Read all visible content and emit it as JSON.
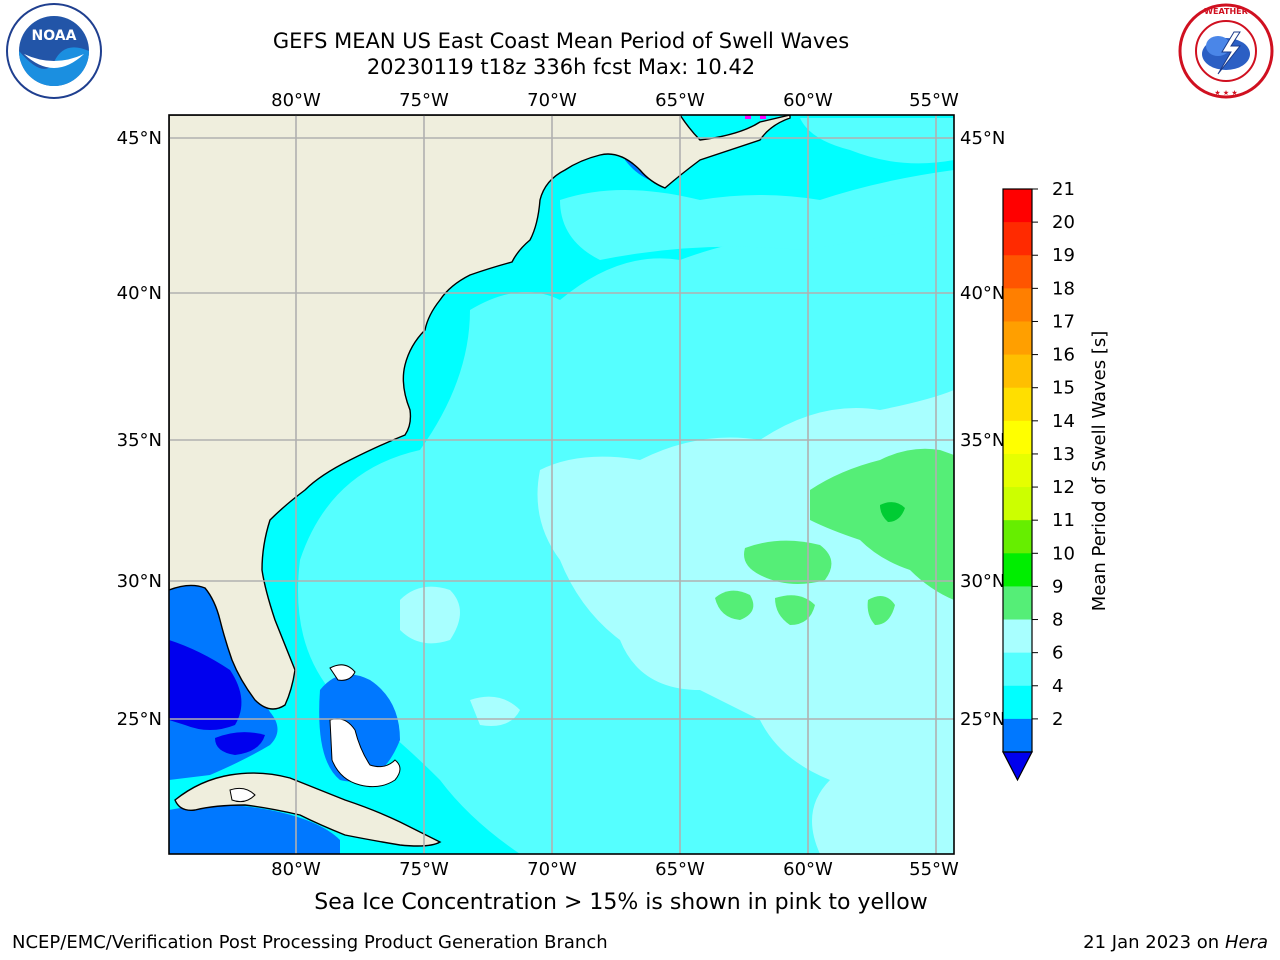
{
  "title": {
    "line1": "GEFS MEAN US East Coast Mean Period of Swell Waves",
    "line2": "20230119 t18z 336h fcst   Max: 10.42"
  },
  "logos": {
    "left": {
      "name": "noaa-logo",
      "text": "NOAA"
    },
    "right": {
      "name": "nws-logo",
      "text": "NATIONAL WEATHER SERVICE"
    }
  },
  "map": {
    "lon_ticks": [
      "80°W",
      "75°W",
      "70°W",
      "65°W",
      "60°W",
      "55°W"
    ],
    "lat_ticks": [
      "45°N",
      "40°N",
      "35°N",
      "30°N",
      "25°N"
    ],
    "colors": {
      "land": "#efeedd",
      "grid": "#b0b0b0",
      "sea_low": "#0000ee",
      "sea_2_4": "#0078ff",
      "sea_4_6": "#00ffff",
      "sea_6_8": "#55ffff",
      "sea_8_9": "#a8ffff",
      "sea_9_10": "#55ee77"
    }
  },
  "colorbar": {
    "label": "Mean Period of Swell Waves [s]",
    "ticks": [
      "21",
      "20",
      "19",
      "18",
      "17",
      "16",
      "15",
      "14",
      "13",
      "12",
      "11",
      "10",
      "9",
      "8",
      "6",
      "4",
      "2"
    ],
    "segment_colors": [
      "#ff0000",
      "#ff2a00",
      "#ff5500",
      "#ff7f00",
      "#ff9f00",
      "#ffbf00",
      "#ffdf00",
      "#ffff00",
      "#e6ff00",
      "#ccff00",
      "#66ee00",
      "#00ee00",
      "#55ee77",
      "#a8ffff",
      "#55ffff",
      "#00ffff",
      "#0078ff"
    ],
    "extend_color": "#0000ee"
  },
  "notes": {
    "ice": "Sea Ice Concentration > 15% is shown in pink to yellow"
  },
  "footer": {
    "left": "NCEP/EMC/Verification Post Processing Product Generation Branch",
    "right_prefix": "21 Jan 2023 on ",
    "right_host": "Hera"
  }
}
